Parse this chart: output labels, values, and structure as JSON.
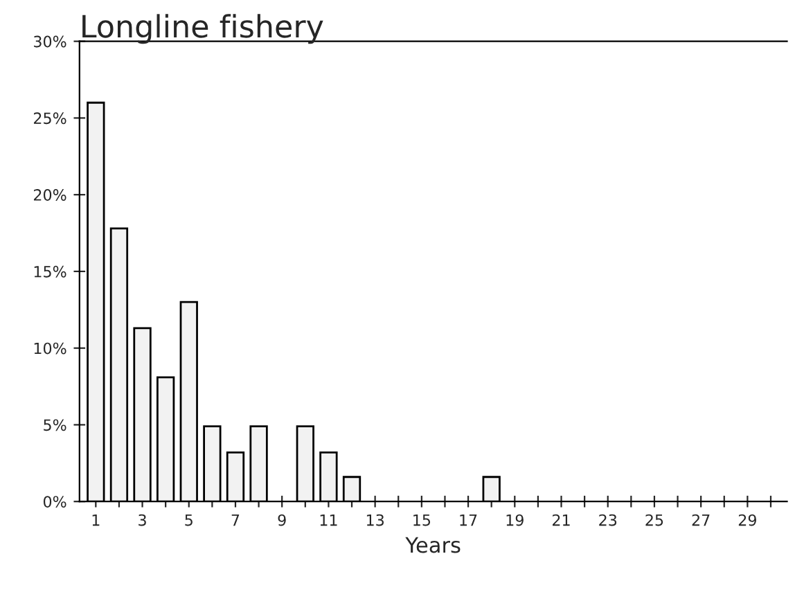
{
  "chart_data": {
    "type": "bar",
    "title": "Longline fishery",
    "xlabel": "Years",
    "categories": [
      "1",
      null,
      "3",
      null,
      "5",
      null,
      "7",
      null,
      "9",
      null,
      "11",
      null,
      "13",
      null,
      "15",
      null,
      "17",
      null,
      "19",
      null,
      "21",
      null,
      "23",
      null,
      "25",
      null,
      "27",
      null,
      "29",
      null
    ],
    "values": [
      26,
      17.8,
      11.3,
      8.1,
      13,
      4.9,
      3.2,
      4.9,
      0,
      4.9,
      3.2,
      1.6,
      0,
      0,
      0,
      0,
      0,
      1.6,
      0,
      0,
      0,
      0,
      0,
      0,
      0,
      0,
      0,
      0,
      0,
      0
    ],
    "color": "#f2f2f2",
    "ylim": [
      0,
      30
    ],
    "yticks": [
      {
        "value": 0,
        "label": "0%"
      },
      {
        "value": 5,
        "label": "5%"
      },
      {
        "value": 10,
        "label": "10%"
      },
      {
        "value": 15,
        "label": "15%"
      },
      {
        "value": 20,
        "label": "20%"
      },
      {
        "value": 25,
        "label": "25%"
      },
      {
        "value": 30,
        "label": "30%"
      }
    ],
    "grid": false,
    "legend": false
  }
}
